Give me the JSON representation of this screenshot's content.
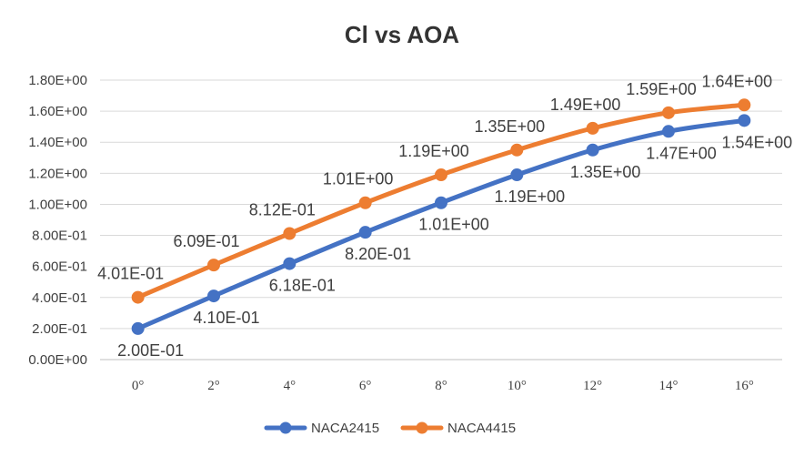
{
  "chart_data": {
    "type": "line",
    "title": "Cl vs AOA",
    "xlabel": "",
    "ylabel": "",
    "categories": [
      "0°",
      "2°",
      "4°",
      "6°",
      "8°",
      "10°",
      "12°",
      "14°",
      "16°"
    ],
    "ylim": [
      0,
      1.8
    ],
    "ytick_values": [
      0,
      0.2,
      0.4,
      0.6,
      0.8,
      1.0,
      1.2,
      1.4,
      1.6,
      1.8
    ],
    "ytick_labels": [
      "0.00E+00",
      "2.00E-01",
      "4.00E-01",
      "6.00E-01",
      "8.00E-01",
      "1.00E+00",
      "1.20E+00",
      "1.40E+00",
      "1.60E+00",
      "1.80E+00"
    ],
    "grid": true,
    "legend_position": "bottom",
    "series": [
      {
        "name": "NACA2415",
        "color": "#4472C4",
        "values": [
          0.2,
          0.41,
          0.618,
          0.82,
          1.01,
          1.19,
          1.35,
          1.47,
          1.54
        ],
        "labels": [
          "2.00E-01",
          "4.10E-01",
          "6.18E-01",
          "8.20E-01",
          "1.01E+00",
          "1.19E+00",
          "1.35E+00",
          "1.47E+00",
          "1.54E+00"
        ],
        "label_position": "below"
      },
      {
        "name": "NACA4415",
        "color": "#ED7D31",
        "values": [
          0.401,
          0.609,
          0.812,
          1.01,
          1.19,
          1.35,
          1.49,
          1.59,
          1.64
        ],
        "labels": [
          "4.01E-01",
          "6.09E-01",
          "8.12E-01",
          "1.01E+00",
          "1.19E+00",
          "1.35E+00",
          "1.49E+00",
          "1.59E+00",
          "1.64E+00"
        ],
        "label_position": "above"
      }
    ]
  }
}
